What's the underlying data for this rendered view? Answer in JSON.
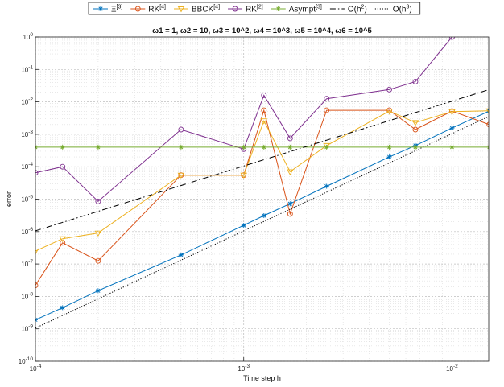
{
  "chart_data": {
    "type": "line",
    "title": "ω1 = 1, ω2 = 10, ω3 = 10^2, ω4 = 10^3, ω5 = 10^4, ω6 = 10^5",
    "xlabel": "Time step h",
    "ylabel": "error",
    "xscale": "log",
    "yscale": "log",
    "xlim": [
      0.0001,
      0.015
    ],
    "ylim": [
      1e-10,
      1
    ],
    "x_ticks": [
      {
        "value": 0.0001,
        "label": "10^-4"
      },
      {
        "value": 0.001,
        "label": "10^-3"
      },
      {
        "value": 0.01,
        "label": "10^-2"
      }
    ],
    "y_ticks": [
      {
        "value": 1e-10,
        "label": "10^-10"
      },
      {
        "value": 1e-09,
        "label": "10^-9"
      },
      {
        "value": 1e-08,
        "label": "10^-8"
      },
      {
        "value": 1e-07,
        "label": "10^-7"
      },
      {
        "value": 1e-06,
        "label": "10^-6"
      },
      {
        "value": 1e-05,
        "label": "10^-5"
      },
      {
        "value": 0.0001,
        "label": "10^-4"
      },
      {
        "value": 0.001,
        "label": "10^-3"
      },
      {
        "value": 0.01,
        "label": "10^-2"
      },
      {
        "value": 0.1,
        "label": "10^-1"
      },
      {
        "value": 1,
        "label": "10^0"
      }
    ],
    "grid": true,
    "minor_grid": true,
    "legend_position": "top",
    "series": [
      {
        "name": "Ξ^[3]",
        "color": "#0072BD",
        "marker": "star",
        "linestyle": "solid",
        "x": [
          0.0001,
          0.000135,
          0.0002,
          0.0005,
          0.001,
          0.00125,
          0.00167,
          0.0025,
          0.005,
          0.00667,
          0.01,
          0.0151
        ],
        "y": [
          1.9e-09,
          4.5e-09,
          1.5e-08,
          1.9e-07,
          1.55e-06,
          3.1e-06,
          7.2e-06,
          2.5e-05,
          0.0002,
          0.00045,
          0.00155,
          0.0052
        ]
      },
      {
        "name": "RK^[4]",
        "color": "#D95319",
        "marker": "circle",
        "linestyle": "solid",
        "x": [
          0.0001,
          0.000135,
          0.0002,
          0.0005,
          0.001,
          0.00125,
          0.00167,
          0.0025,
          0.005,
          0.00667,
          0.01,
          0.0151
        ],
        "y": [
          2.2e-08,
          4.5e-07,
          1.25e-07,
          5.5e-05,
          5.5e-05,
          0.0055,
          3.5e-06,
          0.0055,
          0.0055,
          0.0014,
          0.0052,
          0.002
        ]
      },
      {
        "name": "BBCK^[4]",
        "color": "#EDB120",
        "marker": "triangle-down",
        "linestyle": "solid",
        "x": [
          0.0001,
          0.000135,
          0.0002,
          0.0005,
          0.001,
          0.00125,
          0.00167,
          0.0025,
          0.005,
          0.00667,
          0.01,
          0.0151
        ],
        "y": [
          2.5e-07,
          6e-07,
          9e-07,
          5.5e-05,
          5.5e-05,
          0.0026,
          7e-05,
          0.00045,
          0.0052,
          0.0023,
          0.005,
          0.0053
        ]
      },
      {
        "name": "RK^[2]",
        "color": "#7E2F8E",
        "marker": "circle",
        "linestyle": "solid",
        "x": [
          0.0001,
          0.000135,
          0.0002,
          0.0005,
          0.001,
          0.00125,
          0.00167,
          0.0025,
          0.005,
          0.00667,
          0.01
        ],
        "y": [
          6.5e-05,
          0.0001,
          8.5e-06,
          0.0014,
          0.00035,
          0.016,
          0.00075,
          0.0125,
          0.024,
          0.042,
          1
        ]
      },
      {
        "name": "Asympt^[3]",
        "color": "#77AC30",
        "marker": "asterisk",
        "linestyle": "solid",
        "x": [
          0.0001,
          0.000135,
          0.0002,
          0.0005,
          0.001,
          0.00125,
          0.00167,
          0.0025,
          0.005,
          0.00667,
          0.01,
          0.0151
        ],
        "y": [
          0.0004,
          0.0004,
          0.0004,
          0.0004,
          0.0004,
          0.0004,
          0.0004,
          0.0004,
          0.0004,
          0.0004,
          0.0004,
          0.0004
        ]
      },
      {
        "name": "O(h^2)",
        "color": "#000000",
        "marker": "none",
        "linestyle": "dashdot",
        "x": [
          0.0001,
          0.0151
        ],
        "y": [
          1.05e-06,
          0.024
        ]
      },
      {
        "name": "O(h^3)",
        "color": "#000000",
        "marker": "none",
        "linestyle": "dotted",
        "x": [
          0.0001,
          0.0151
        ],
        "y": [
          1.05e-09,
          0.0036
        ]
      }
    ]
  }
}
